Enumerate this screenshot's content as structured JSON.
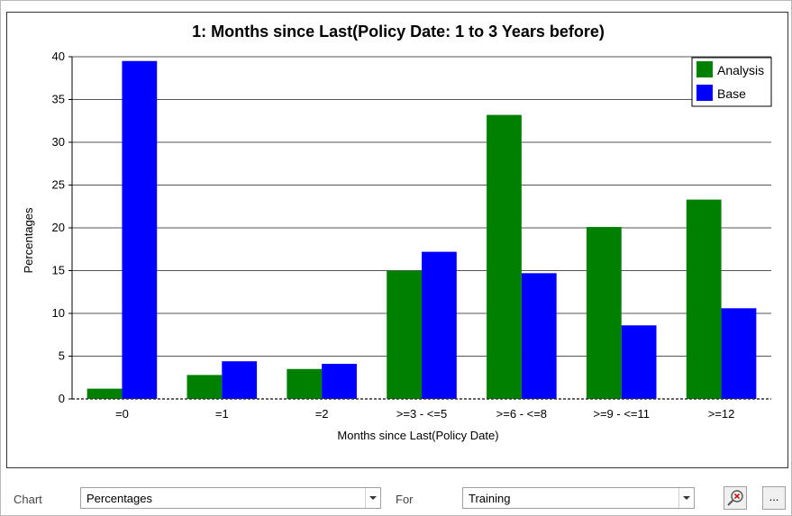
{
  "chart_data": {
    "type": "bar",
    "title": "1: Months since Last(Policy Date: 1 to 3 Years before)",
    "xlabel": "Months since Last(Policy Date)",
    "ylabel": "Percentages",
    "ylim": [
      0,
      40
    ],
    "yticks": [
      0,
      5,
      10,
      15,
      20,
      25,
      30,
      35,
      40
    ],
    "categories": [
      "=0",
      "=1",
      "=2",
      ">=3 - <=5",
      ">=6 - <=8",
      ">=9 - <=11",
      ">=12"
    ],
    "series": [
      {
        "name": "Analysis",
        "color": "#008000",
        "values": [
          1.2,
          2.8,
          3.5,
          15.0,
          33.2,
          20.1,
          23.3
        ]
      },
      {
        "name": "Base",
        "color": "#0000ff",
        "values": [
          39.5,
          4.4,
          4.1,
          17.2,
          14.7,
          8.6,
          10.6
        ]
      }
    ],
    "grid": true,
    "legend_position": "top-right"
  },
  "controls": {
    "chart_label": "Chart",
    "chart_value": "Percentages",
    "for_label": "For",
    "for_value": "Training",
    "more_label": "..."
  }
}
